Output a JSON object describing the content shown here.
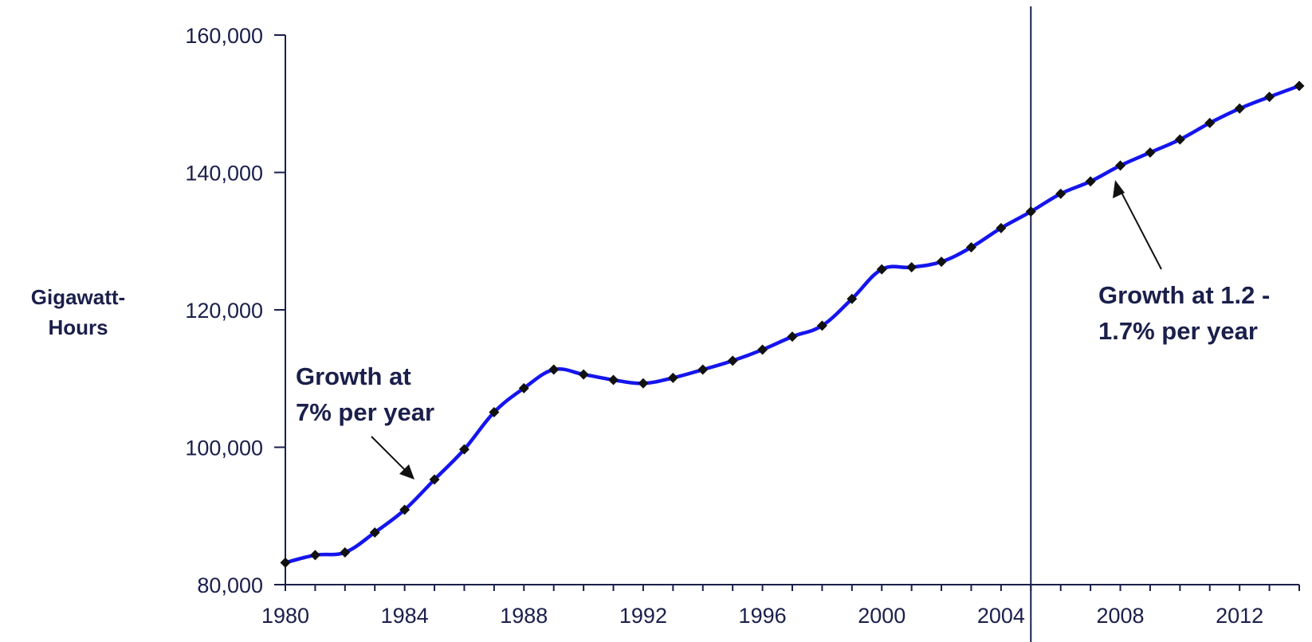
{
  "chart_data": {
    "type": "line",
    "title": "",
    "xlabel": "",
    "ylabel_lines": [
      "Gigawatt-",
      "Hours"
    ],
    "xlim": [
      1980,
      2014
    ],
    "ylim": [
      80000,
      160000
    ],
    "x_ticks": [
      1980,
      1984,
      1988,
      1992,
      1996,
      2000,
      2004,
      2008,
      2012
    ],
    "x_tick_labels": [
      "1980",
      "1984",
      "1988",
      "1992",
      "1996",
      "2000",
      "2004",
      "2008",
      "2012"
    ],
    "y_ticks": [
      80000,
      100000,
      120000,
      140000,
      160000
    ],
    "y_tick_labels": [
      "80,000",
      "100,000",
      "120,000",
      "140,000",
      "160,000"
    ],
    "grid": false,
    "x": [
      1980,
      1981,
      1982,
      1983,
      1984,
      1985,
      1986,
      1987,
      1988,
      1989,
      1990,
      1991,
      1992,
      1993,
      1994,
      1995,
      1996,
      1997,
      1998,
      1999,
      2000,
      2001,
      2002,
      2003,
      2004,
      2005,
      2006,
      2007,
      2008,
      2009,
      2010,
      2011,
      2012,
      2013,
      2014
    ],
    "series": [
      {
        "values": [
          83200,
          84300,
          84700,
          87600,
          90900,
          95300,
          99700,
          105100,
          108600,
          111300,
          110600,
          109800,
          109300,
          110100,
          111300,
          112600,
          114200,
          116100,
          117700,
          121600,
          125900,
          126200,
          127000,
          129100,
          131900,
          134300,
          136900,
          138700,
          141000,
          142900,
          144800,
          147200,
          149300,
          151000,
          152600
        ],
        "color": "#1515ee"
      }
    ],
    "reference_line_x": 2005,
    "annotations": [
      {
        "lines": [
          "Growth at",
          "7% per year"
        ],
        "points_to_x": 1985
      },
      {
        "lines": [
          "Growth at 1.2 -",
          "1.7% per year"
        ],
        "points_to_x": 2008
      }
    ]
  }
}
